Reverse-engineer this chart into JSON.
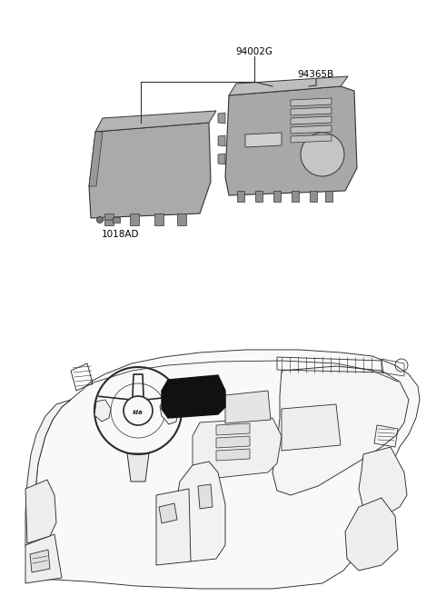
{
  "background_color": "#ffffff",
  "label_94002G": "94002G",
  "label_94365B": "94365B",
  "label_1018AD": "1018AD",
  "label_color": "#000000",
  "label_fontsize": 7.5,
  "line_color": "#333333",
  "part_gray": "#aaaaaa",
  "part_gray_dark": "#888888",
  "part_gray_light": "#cccccc"
}
